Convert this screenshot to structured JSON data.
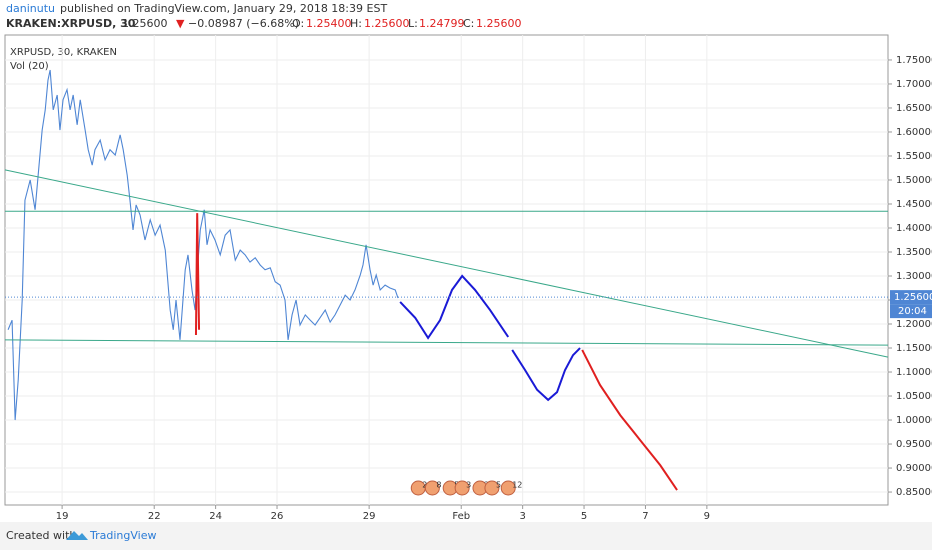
{
  "header": {
    "author": "daninutu",
    "published": "published on TradingView.com, January 29, 2018 18:39 EST",
    "symbol": "KRAKEN:XRPUSD, 30",
    "price": "1.25600",
    "arrow": "▼",
    "change": "−0.08987 (−6.68%)",
    "o_label": "O:",
    "o": "1.25400",
    "h_label": "H:",
    "h": "1.25600",
    "l_label": "L:",
    "l": "1.24799",
    "c_label": "C:",
    "c": "1.25600"
  },
  "footer": {
    "created": "Created with",
    "brand": "TradingView"
  },
  "chart_data": {
    "type": "line",
    "legend": [
      "XRPUSD, 30, KRAKEN",
      "Vol (20)"
    ],
    "xlim": [
      17.14,
      45.9
    ],
    "ylim": [
      0.823,
      1.802
    ],
    "xticks": [
      19,
      22,
      24,
      26,
      29,
      {
        "value": 32,
        "label": "Feb"
      },
      {
        "value": 34,
        "label": "3"
      },
      {
        "value": 36,
        "label": "5"
      },
      {
        "value": 38,
        "label": "7"
      },
      {
        "value": 40,
        "label": "9"
      }
    ],
    "yticks": [
      {
        "value": 0.85,
        "label": "0.85000"
      },
      {
        "value": 0.9,
        "label": "0.90000"
      },
      {
        "value": 0.95,
        "label": "0.95000"
      },
      {
        "value": 1.0,
        "label": "1.00000"
      },
      {
        "value": 1.05,
        "label": "1.05000"
      },
      {
        "value": 1.1,
        "label": "1.10000"
      },
      {
        "value": 1.15,
        "label": "1.15000"
      },
      {
        "value": 1.2,
        "label": "1.20000"
      },
      {
        "value": 1.25,
        "label": "1.25000"
      },
      {
        "value": 1.3,
        "label": "1.30000"
      },
      {
        "value": 1.35,
        "label": "1.35000"
      },
      {
        "value": 1.4,
        "label": "1.40000"
      },
      {
        "value": 1.45,
        "label": "1.45000"
      },
      {
        "value": 1.5,
        "label": "1.50000"
      },
      {
        "value": 1.55,
        "label": "1.55000"
      },
      {
        "value": 1.6,
        "label": "1.60000"
      },
      {
        "value": 1.65,
        "label": "1.65000"
      },
      {
        "value": 1.7,
        "label": "1.70000"
      },
      {
        "value": 1.75,
        "label": "1.75000"
      }
    ],
    "grid": true,
    "series": [
      {
        "name": "XRPUSD",
        "color": "#4f86d4",
        "x": [
          17.24,
          17.37,
          17.47,
          17.57,
          17.7,
          17.79,
          17.96,
          18.12,
          18.22,
          18.35,
          18.45,
          18.54,
          18.61,
          18.71,
          18.84,
          18.93,
          19.03,
          19.16,
          19.26,
          19.36,
          19.49,
          19.59,
          19.75,
          19.85,
          19.98,
          20.07,
          20.24,
          20.4,
          20.56,
          20.73,
          20.89,
          20.99,
          21.12,
          21.21,
          21.31,
          21.41,
          21.54,
          21.7,
          21.87,
          22.03,
          22.19,
          22.36,
          22.52,
          22.62,
          22.71,
          22.84,
          23.01,
          23.1,
          23.23,
          23.33,
          23.43,
          23.5,
          23.63,
          23.72,
          23.82,
          23.98,
          24.15,
          24.31,
          24.47,
          24.64,
          24.8,
          24.96,
          25.12,
          25.29,
          25.45,
          25.61,
          25.78,
          25.94,
          26.1,
          26.26,
          26.36,
          26.49,
          26.62,
          26.75,
          26.92,
          27.08,
          27.24,
          27.4,
          27.57,
          27.73,
          27.89,
          28.06,
          28.22,
          28.38,
          28.54,
          28.71,
          28.8,
          28.9,
          29.03,
          29.13,
          29.23,
          29.36,
          29.52,
          29.68,
          29.85,
          29.94
        ],
        "values": [
          1.188,
          1.208,
          1.0,
          1.083,
          1.25,
          1.458,
          1.5,
          1.438,
          1.51,
          1.604,
          1.646,
          1.708,
          1.729,
          1.646,
          1.677,
          1.604,
          1.667,
          1.688,
          1.646,
          1.677,
          1.615,
          1.667,
          1.604,
          1.563,
          1.531,
          1.563,
          1.583,
          1.542,
          1.563,
          1.552,
          1.594,
          1.563,
          1.51,
          1.458,
          1.396,
          1.448,
          1.427,
          1.375,
          1.417,
          1.385,
          1.406,
          1.354,
          1.229,
          1.188,
          1.25,
          1.167,
          1.313,
          1.344,
          1.271,
          1.229,
          1.333,
          1.396,
          1.438,
          1.365,
          1.396,
          1.375,
          1.344,
          1.385,
          1.396,
          1.333,
          1.354,
          1.344,
          1.329,
          1.338,
          1.323,
          1.313,
          1.317,
          1.288,
          1.281,
          1.25,
          1.167,
          1.219,
          1.25,
          1.198,
          1.219,
          1.208,
          1.198,
          1.213,
          1.229,
          1.204,
          1.219,
          1.24,
          1.26,
          1.25,
          1.271,
          1.302,
          1.323,
          1.365,
          1.313,
          1.281,
          1.302,
          1.271,
          1.281,
          1.275,
          1.271,
          1.254
        ]
      }
    ],
    "last_price": {
      "value": 1.256,
      "label": "1.25600",
      "countdown": "20:04"
    },
    "drawings": [
      {
        "color": "#3aa88a",
        "x": [
          17.14,
          45.9
        ],
        "y": [
          1.435,
          1.435
        ]
      },
      {
        "color": "#3aa88a",
        "x": [
          17.14,
          45.9
        ],
        "y": [
          1.167,
          1.156
        ]
      },
      {
        "color": "#3aa88a",
        "x": [
          17.14,
          45.9
        ],
        "y": [
          1.521,
          1.131
        ]
      },
      {
        "color": "#e02020",
        "x": [
          23.36,
          23.4,
          23.46
        ],
        "y": [
          1.177,
          1.431,
          1.188
        ]
      },
      {
        "color": "#1a1ad6",
        "x": [
          30.01,
          30.5,
          30.92,
          31.31,
          31.7,
          32.03,
          32.45,
          32.94,
          33.53
        ],
        "y": [
          1.246,
          1.213,
          1.171,
          1.208,
          1.271,
          1.3,
          1.271,
          1.229,
          1.173
        ]
      },
      {
        "color": "#1a1ad6",
        "x": [
          33.66,
          34.08,
          34.47,
          34.83,
          35.12,
          35.38,
          35.64,
          35.87
        ],
        "y": [
          1.146,
          1.104,
          1.063,
          1.042,
          1.058,
          1.104,
          1.135,
          1.15
        ]
      },
      {
        "color": "#e02020",
        "x": [
          35.94,
          36.52,
          37.18,
          37.83,
          38.48,
          39.03
        ],
        "y": [
          1.146,
          1.073,
          1.01,
          0.958,
          0.906,
          0.854
        ]
      }
    ],
    "events": [
      {
        "x": 30.6,
        "label": "2"
      },
      {
        "x": 31.06,
        "label": "8"
      },
      {
        "x": 31.64,
        "label": "5"
      },
      {
        "x": 32.03,
        "label": "3"
      },
      {
        "x": 32.61,
        "label": "29"
      },
      {
        "x": 33.0,
        "label": "5"
      },
      {
        "x": 33.53,
        "label": "12"
      }
    ]
  }
}
